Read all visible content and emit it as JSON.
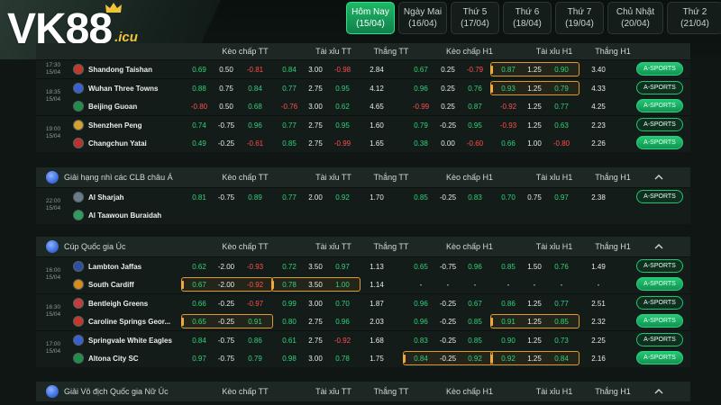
{
  "brand": {
    "logo": "VK88",
    "suffix": ".icu",
    "accent": "#1fb868"
  },
  "day_tabs": [
    {
      "label": "Hôm Nay",
      "date": "(15/04)",
      "active": true
    },
    {
      "label": "Ngày Mai",
      "date": "(16/04)"
    },
    {
      "label": "Thứ 5",
      "date": "(17/04)"
    },
    {
      "label": "Thứ 6",
      "date": "(18/04)"
    },
    {
      "label": "Thứ 7",
      "date": "(19/04)"
    },
    {
      "label": "Chủ Nhật",
      "date": "(20/04)"
    },
    {
      "label": "Thứ 2",
      "date": "(21/04)"
    }
  ],
  "columns": {
    "hdp_ft": "Kèo chấp TT",
    "ou_ft": "Tài xỉu TT",
    "win_ft": "Thắng TT",
    "hdp_h1": "Kèo chấp H1",
    "ou_h1": "Tài xỉu H1",
    "win_h1": "Thắng H1"
  },
  "button_label": "A-SPORTS",
  "sections": [
    {
      "title": "",
      "matches": [
        {
          "time": "17:30",
          "date": "15/04",
          "teams": [
            {
              "name": "Shandong Taishan",
              "hdp": [
                "0.69",
                "0.50",
                "-0.81"
              ],
              "ou": [
                "0.84",
                "3.00",
                "-0.98"
              ],
              "win": "2.84",
              "hdp1": [
                "0.67",
                "0.25",
                "-0.79"
              ],
              "ou1": [
                "0.87",
                "1.25",
                "0.90"
              ],
              "win1": "3.40"
            }
          ]
        },
        {
          "time": "18:35",
          "date": "15/04",
          "teams": [
            {
              "name": "Wuhan Three Towns",
              "hdp": [
                "0.88",
                "0.75",
                "0.84"
              ],
              "ou": [
                "0.77",
                "2.75",
                "0.95"
              ],
              "win": "4.12",
              "hdp1": [
                "0.96",
                "0.25",
                "0.76"
              ],
              "ou1": [
                "0.93",
                "1.25",
                "0.79"
              ],
              "win1": "4.33"
            },
            {
              "name": "Beijing Guoan",
              "hdp": [
                "-0.80",
                "0.50",
                "0.68"
              ],
              "ou": [
                "-0.76",
                "3.00",
                "0.62"
              ],
              "win": "4.65",
              "hdp1": [
                "-0.99",
                "0.25",
                "0.87"
              ],
              "ou1": [
                "-0.92",
                "1.25",
                "0.77"
              ],
              "win1": "4.25"
            }
          ]
        },
        {
          "time": "19:00",
          "date": "15/04",
          "teams": [
            {
              "name": "Shenzhen Peng",
              "hdp": [
                "0.74",
                "-0.75",
                "0.96"
              ],
              "ou": [
                "0.77",
                "2.75",
                "0.95"
              ],
              "win": "1.60",
              "hdp1": [
                "0.79",
                "-0.25",
                "0.95"
              ],
              "ou1": [
                "-0.93",
                "1.25",
                "0.63"
              ],
              "win1": "2.23"
            },
            {
              "name": "Changchun Yatai",
              "hdp": [
                "0.49",
                "-0.25",
                "-0.61"
              ],
              "ou": [
                "0.85",
                "2.75",
                "-0.99"
              ],
              "win": "1.65",
              "hdp1": [
                "0.38",
                "0.00",
                "-0.60"
              ],
              "ou1": [
                "0.66",
                "1.00",
                "-0.80"
              ],
              "win1": "2.26"
            }
          ]
        }
      ]
    },
    {
      "title": "Giải hạng nhì các CLB châu Á",
      "matches": [
        {
          "time": "22:00",
          "date": "15/04",
          "teams": [
            {
              "name": "Al Sharjah",
              "hdp": [
                "0.81",
                "-0.75",
                "0.89"
              ],
              "ou": [
                "0.77",
                "2.00",
                "0.92"
              ],
              "win": "1.70",
              "hdp1": [
                "0.85",
                "-0.25",
                "0.83"
              ],
              "ou1": [
                "0.70",
                "0.75",
                "0.97"
              ],
              "win1": "2.38"
            },
            {
              "name": "Al Taawoun Buraidah"
            }
          ]
        }
      ]
    },
    {
      "title": "Cúp Quốc gia Úc",
      "matches": [
        {
          "time": "16:00",
          "date": "15/04",
          "teams": [
            {
              "name": "Lambton Jaffas",
              "hdp": [
                "0.62",
                "-2.00",
                "-0.93"
              ],
              "ou": [
                "0.72",
                "3.50",
                "0.97"
              ],
              "win": "1.13",
              "hdp1": [
                "0.65",
                "-0.75",
                "0.96"
              ],
              "ou1": [
                "0.85",
                "1.50",
                "0.76"
              ],
              "win1": "1.49"
            },
            {
              "name": "South Cardiff",
              "hdp": [
                "0.67",
                "-2.00",
                "-0.92"
              ],
              "ou": [
                "0.78",
                "3.50",
                "1.00"
              ],
              "win": "1.14",
              "hdp1": [
                "-",
                "-",
                "-"
              ],
              "ou1": [
                "-",
                "-",
                "-"
              ],
              "win1": "-"
            }
          ]
        },
        {
          "time": "16:30",
          "date": "15/04",
          "teams": [
            {
              "name": "Bentleigh Greens",
              "hdp": [
                "0.66",
                "-0.25",
                "-0.97"
              ],
              "ou": [
                "0.99",
                "3.00",
                "0.70"
              ],
              "win": "1.87",
              "hdp1": [
                "0.96",
                "-0.25",
                "0.67"
              ],
              "ou1": [
                "0.86",
                "1.25",
                "0.77"
              ],
              "win1": "2.51"
            },
            {
              "name": "Caroline Springs Geor...",
              "hdp": [
                "0.65",
                "-0.25",
                "0.91"
              ],
              "ou": [
                "0.80",
                "2.75",
                "0.96"
              ],
              "win": "2.03",
              "hdp1": [
                "0.96",
                "-0.25",
                "0.85"
              ],
              "ou1": [
                "0.91",
                "1.25",
                "0.85"
              ],
              "win1": "2.32"
            }
          ]
        },
        {
          "time": "17:00",
          "date": "15/04",
          "teams": [
            {
              "name": "Springvale White Eagles",
              "hdp": [
                "0.84",
                "-0.75",
                "0.86"
              ],
              "ou": [
                "0.61",
                "2.75",
                "-0.92"
              ],
              "win": "1.68",
              "hdp1": [
                "0.83",
                "-0.25",
                "0.85"
              ],
              "ou1": [
                "0.90",
                "1.25",
                "0.73"
              ],
              "win1": "2.25"
            },
            {
              "name": "Altona City SC",
              "hdp": [
                "0.97",
                "-0.75",
                "0.79"
              ],
              "ou": [
                "0.98",
                "3.00",
                "0.78"
              ],
              "win": "1.75",
              "hdp1": [
                "0.84",
                "-0.25",
                "0.92"
              ],
              "ou1": [
                "0.92",
                "1.25",
                "0.84"
              ],
              "win1": "2.16"
            }
          ]
        }
      ]
    },
    {
      "title": "Giải Vô địch Quốc gia Nữ Úc",
      "matches": []
    }
  ]
}
